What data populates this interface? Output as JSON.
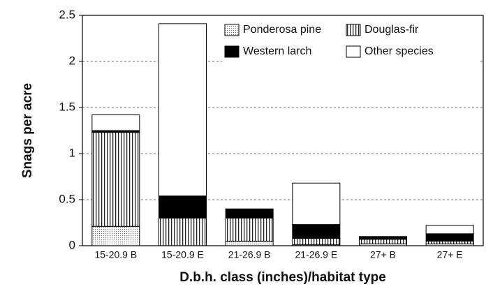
{
  "chart_data": {
    "type": "stacked-bar",
    "x_label": "D.b.h. class (inches)/habitat type",
    "y_label": "Snags per acre",
    "categories": [
      "15-20.9 B",
      "15-20.9 E",
      "21-26.9 B",
      "21-26.9 E",
      "27+ B",
      "27+ E"
    ],
    "series": [
      {
        "name": "Ponderosa pine",
        "color": "#ffffff",
        "hatch": "dots",
        "values": [
          0.21,
          0,
          0.05,
          0.01,
          0.02,
          0.02
        ]
      },
      {
        "name": "Douglas-fir",
        "color": "#ffffff",
        "hatch": "vertical",
        "values": [
          1.02,
          0.3,
          0.25,
          0.07,
          0.05,
          0.03
        ]
      },
      {
        "name": "Western larch",
        "color": "#000000",
        "hatch": "solid",
        "values": [
          0.02,
          0.24,
          0.1,
          0.15,
          0.03,
          0.08
        ]
      },
      {
        "name": "Other species",
        "color": "#ffffff",
        "hatch": "solid",
        "values": [
          0.17,
          1.87,
          0,
          0.45,
          0,
          0.09
        ]
      }
    ],
    "ylim": [
      0,
      2.5
    ],
    "yticks": [
      0,
      0.5,
      1,
      1.5,
      2,
      2.5
    ],
    "grid": true,
    "legend": "top-right"
  }
}
